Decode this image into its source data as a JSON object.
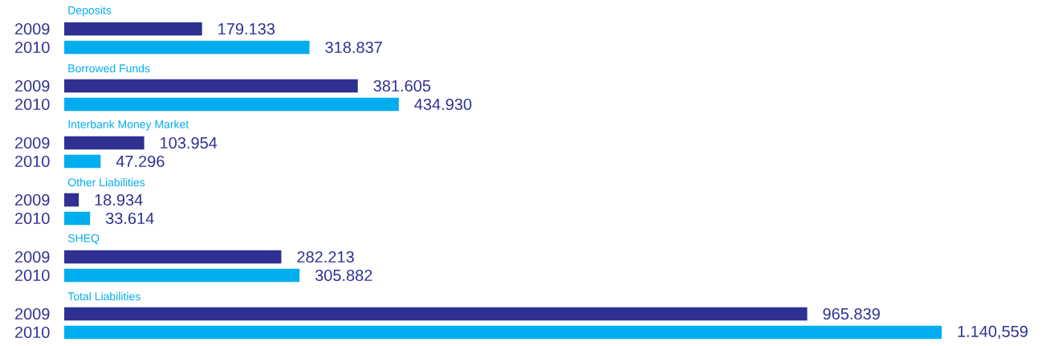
{
  "chart_data": {
    "type": "bar",
    "orientation": "horizontal",
    "categories": [
      "Deposits",
      "Borrowed Funds",
      "Interbank Money Market",
      "Other Liabilities",
      "SHEQ",
      "Total Liabilities"
    ],
    "series": [
      {
        "name": "2009",
        "color": "#2e3192",
        "values": [
          179.133,
          381.605,
          103.954,
          18.934,
          282.213,
          965.839
        ],
        "value_labels": [
          "179.133",
          "381.605",
          "103.954",
          "18.934",
          "282.213",
          "965.839"
        ]
      },
      {
        "name": "2010",
        "color": "#00aeef",
        "values": [
          318.837,
          434.93,
          47.296,
          33.614,
          305.882,
          1140.559
        ],
        "value_labels": [
          "318.837",
          "434.930",
          "47.296",
          "33.614",
          "305.882",
          "1.140,559"
        ]
      }
    ]
  }
}
